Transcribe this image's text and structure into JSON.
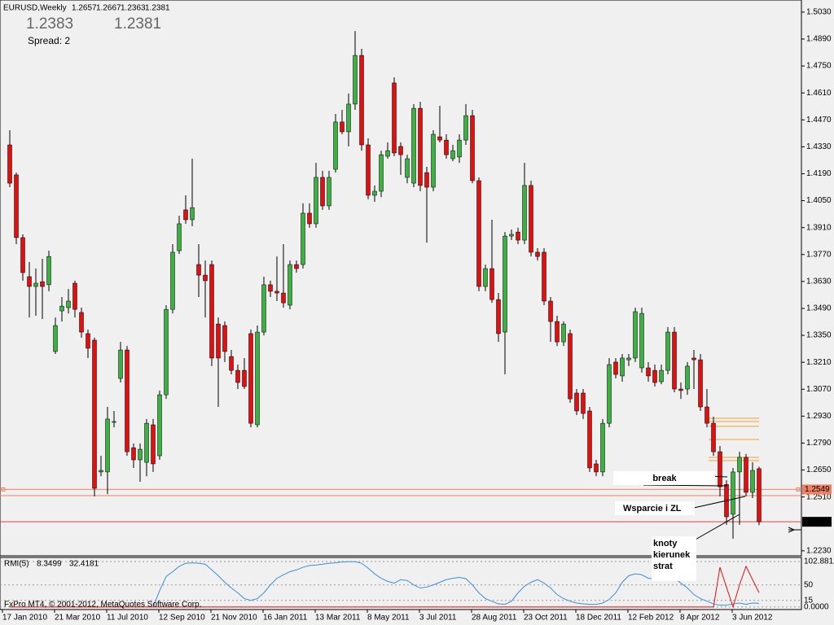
{
  "header": {
    "symbol": "EURUSD,Weekly",
    "quotes": [
      1.2383,
      1.2381
    ],
    "spread": "Spread: 2"
  },
  "footer": "FxPro MT4, © 2001-2012, MetaQuotes Software Corp.",
  "annotations": [
    "break",
    "Wsparcie i ZL",
    "knoty",
    "kierunek",
    "strat"
  ],
  "chart_data": [
    {
      "type": "candlestick",
      "categories": [
        "17 Jan 2010",
        null,
        null,
        null,
        null,
        null,
        null,
        null,
        "21 Mar 2010",
        null,
        null,
        null,
        null,
        null,
        null,
        null,
        "11 Jul 2010",
        null,
        null,
        null,
        null,
        null,
        null,
        null,
        "12 Sep 2010",
        null,
        null,
        null,
        null,
        null,
        null,
        null,
        "21 Nov 2010",
        null,
        null,
        null,
        null,
        null,
        null,
        null,
        "16 Jan 2011",
        null,
        null,
        null,
        null,
        null,
        null,
        null,
        "13 Mar 2011",
        null,
        null,
        null,
        null,
        null,
        null,
        null,
        "8 May 2011",
        null,
        null,
        null,
        null,
        null,
        null,
        null,
        "3 Jul 2011",
        null,
        null,
        null,
        null,
        null,
        null,
        null,
        "28 Aug 2011",
        null,
        null,
        null,
        null,
        null,
        null,
        null,
        "23 Oct 2011",
        null,
        null,
        null,
        null,
        null,
        null,
        null,
        "18 Dec 2011",
        null,
        null,
        null,
        null,
        null,
        null,
        null,
        "12 Feb 2012",
        null,
        null,
        null,
        null,
        null,
        null,
        null,
        "8 Apr 2012",
        null,
        null,
        null,
        null,
        null,
        null,
        null,
        "3 Jun 2012",
        null,
        null,
        null
      ],
      "open": [
        1.434,
        1.4184,
        1.3858,
        1.3655,
        1.3604,
        1.3629,
        1.3613,
        1.3266,
        1.3477,
        1.3494,
        1.3621,
        1.3469,
        1.3359,
        1.3325,
        1.264,
        1.264,
        1.2902,
        1.3126,
        1.3274,
        1.2766,
        1.2703,
        1.269,
        1.2885,
        1.2724,
        1.3041,
        1.3485,
        1.379,
        1.4002,
        1.3951,
        1.3718,
        1.3663,
        1.3718,
        1.3409,
        1.3401,
        1.324,
        1.3168,
        1.3168,
        1.3359,
        1.2885,
        1.3367,
        1.3613,
        1.3579,
        1.357,
        1.3507,
        1.3718,
        1.3718,
        1.3985,
        1.393,
        1.4171,
        1.4023,
        1.4213,
        1.4459,
        1.4408,
        1.4552,
        1.4805,
        1.434,
        1.4078,
        1.4099,
        1.4281,
        1.4662,
        1.4332,
        1.4171,
        1.4141,
        1.453,
        1.4196,
        1.412,
        1.4382,
        1.4365,
        1.4268,
        1.4277,
        1.4365,
        1.4492,
        1.4154,
        1.3604,
        1.3697,
        1.3536,
        1.3367,
        1.3866,
        1.3887,
        1.3845,
        1.4129,
        1.3782,
        1.3782,
        1.3528,
        1.3422,
        1.3316,
        1.3359,
        1.305,
        1.305,
        1.2957,
        1.2682,
        1.264,
        1.2893,
        1.3211,
        1.3139,
        1.3223,
        1.3232,
        1.3181,
        1.3181,
        1.3168,
        1.3109,
        1.3168,
        1.3367,
        1.3071,
        1.3071,
        1.3232,
        1.3223,
        1.2978,
        1.2893,
        1.2745,
        1.2575,
        1.242,
        1.264,
        1.2716,
        1.2534,
        1.2657
      ],
      "high": [
        1.4416,
        1.4196,
        1.3875,
        1.3731,
        1.3697,
        1.3748,
        1.379,
        1.3443,
        1.3549,
        1.3591,
        1.3634,
        1.3494,
        1.338,
        1.3338,
        1.2724,
        1.2978,
        1.2957,
        1.3316,
        1.3295,
        1.2788,
        1.2788,
        1.2915,
        1.2915,
        1.3063,
        1.3507,
        1.3824,
        1.3972,
        1.4078,
        1.4268,
        1.3824,
        1.3739,
        1.3739,
        1.3443,
        1.3422,
        1.3274,
        1.3198,
        1.3232,
        1.338,
        1.3401,
        1.3655,
        1.3634,
        1.376,
        1.3824,
        1.3739,
        1.3739,
        1.4036,
        1.4036,
        1.4247,
        1.4205,
        1.4205,
        1.4501,
        1.4522,
        1.4607,
        1.4932,
        1.4839,
        1.4374,
        1.4129,
        1.431,
        1.4353,
        1.4691,
        1.4353,
        1.4289,
        1.4552,
        1.4564,
        1.4226,
        1.4416,
        1.4543,
        1.4395,
        1.434,
        1.4395,
        1.4552,
        1.4522,
        1.4171,
        1.3718,
        1.3951,
        1.357,
        1.3887,
        1.39,
        1.3909,
        1.4247,
        1.4154,
        1.3803,
        1.3803,
        1.3549,
        1.3452,
        1.3422,
        1.338,
        1.3071,
        1.3071,
        1.2978,
        1.2703,
        1.2915,
        1.3232,
        1.3232,
        1.3253,
        1.3253,
        1.3494,
        1.3494,
        1.3211,
        1.3198,
        1.3198,
        1.3393,
        1.3393,
        1.3105,
        1.3211,
        1.3274,
        1.3253,
        1.3071,
        1.2927,
        1.2775,
        1.2597,
        1.2661,
        1.2745,
        1.2733,
        1.269,
        1.2667
      ],
      "low": [
        1.412,
        1.3824,
        1.3634,
        1.3443,
        1.3452,
        1.3435,
        1.3579,
        1.3253,
        1.3422,
        1.3464,
        1.3443,
        1.3338,
        1.3232,
        1.2513,
        1.2618,
        1.2525,
        1.2872,
        1.3105,
        1.2724,
        1.2661,
        1.2589,
        1.2618,
        1.264,
        1.2703,
        1.302,
        1.3464,
        1.3773,
        1.393,
        1.3917,
        1.3549,
        1.3443,
        1.319,
        1.2978,
        1.3211,
        1.3147,
        1.3071,
        1.3071,
        1.2872,
        1.2872,
        1.335,
        1.3549,
        1.3528,
        1.3494,
        1.3485,
        1.3676,
        1.3697,
        1.3909,
        1.3909,
        1.4002,
        1.4002,
        1.4196,
        1.4395,
        1.4332,
        1.4522,
        1.431,
        1.4057,
        1.4044,
        1.4069,
        1.4268,
        1.4281,
        1.4184,
        1.4141,
        1.412,
        1.4099,
        1.3832,
        1.4099,
        1.4353,
        1.4268,
        1.4255,
        1.4247,
        1.434,
        1.4141,
        1.3579,
        1.3579,
        1.3519,
        1.3316,
        1.3147,
        1.3845,
        1.3824,
        1.3824,
        1.376,
        1.3739,
        1.3507,
        1.3316,
        1.3295,
        1.3295,
        1.3,
        1.2936,
        1.2915,
        1.264,
        1.2618,
        1.2618,
        1.2872,
        1.3126,
        1.3109,
        1.319,
        1.3211,
        1.3156,
        1.3109,
        1.3084,
        1.3096,
        1.3147,
        1.3054,
        1.302,
        1.3041,
        1.3071,
        1.2957,
        1.2872,
        1.2724,
        1.2513,
        1.2365,
        1.2293,
        1.2365,
        1.2513,
        1.2504,
        1.2363
      ],
      "close": [
        1.4141,
        1.3858,
        1.3676,
        1.3604,
        1.3621,
        1.3604,
        1.376,
        1.3401,
        1.3502,
        1.3528,
        1.3485,
        1.3367,
        1.3283,
        1.2555,
        1.2648,
        1.2915,
        1.2902,
        1.3274,
        1.2745,
        1.2703,
        1.2758,
        1.2893,
        1.2682,
        1.3041,
        1.3485,
        1.3782,
        1.393,
        1.3951,
        1.4014,
        1.3663,
        1.3634,
        1.3232,
        1.3232,
        1.3266,
        1.3168,
        1.3105,
        1.3084,
        1.2893,
        1.3367,
        1.3613,
        1.3579,
        1.357,
        1.3519,
        1.3718,
        1.3697,
        1.3985,
        1.393,
        1.4171,
        1.4023,
        1.4171,
        1.4459,
        1.4408,
        1.4552,
        1.4805,
        1.434,
        1.4078,
        1.4099,
        1.4289,
        1.431,
        1.4298,
        1.4289,
        1.4268,
        1.453,
        1.4129,
        1.412,
        1.4395,
        1.4365,
        1.4289,
        1.431,
        1.4365,
        1.4492,
        1.4154,
        1.3604,
        1.3697,
        1.3536,
        1.3359,
        1.3866,
        1.3875,
        1.3845,
        1.4129,
        1.3782,
        1.376,
        1.3528,
        1.3422,
        1.3316,
        1.3409,
        1.302,
        1.2957,
        1.2944,
        1.2661,
        1.264,
        1.2893,
        1.3198,
        1.3147,
        1.3232,
        1.3232,
        1.3473,
        1.3464,
        1.3139,
        1.3105,
        1.3168,
        1.3367,
        1.3071,
        1.3063,
        1.319,
        1.3223,
        1.2978,
        1.2893,
        1.2745,
        1.2563,
        1.2407,
        1.264,
        1.2716,
        1.2534,
        1.2648,
        1.2381
      ],
      "up_color": "#3cb043",
      "down_color": "#e01010",
      "ylim": [
        1.2204,
        1.5093
      ],
      "yticks": [
        {
          "value": 1.503,
          "label": "1.5030"
        },
        {
          "value": 1.489,
          "label": "1.4890"
        },
        {
          "value": 1.475,
          "label": "1.4750"
        },
        {
          "value": 1.461,
          "label": "1.4610"
        },
        {
          "value": 1.447,
          "label": "1.4470"
        },
        {
          "value": 1.433,
          "label": "1.4330"
        },
        {
          "value": 1.419,
          "label": "1.4190"
        },
        {
          "value": 1.405,
          "label": "1.4050"
        },
        {
          "value": 1.391,
          "label": "1.3910"
        },
        {
          "value": 1.377,
          "label": "1.3770"
        },
        {
          "value": 1.363,
          "label": "1.3630"
        },
        {
          "value": 1.349,
          "label": "1.3490"
        },
        {
          "value": 1.335,
          "label": "1.3350"
        },
        {
          "value": 1.321,
          "label": "1.3210"
        },
        {
          "value": 1.307,
          "label": "1.3070"
        },
        {
          "value": 1.293,
          "label": "1.2930"
        },
        {
          "value": 1.279,
          "label": "1.2790"
        },
        {
          "value": 1.265,
          "label": "1.2650"
        },
        {
          "value": 1.251,
          "label": "1.2510"
        },
        {
          "value": 1.223,
          "label": "1.2230"
        }
      ],
      "price_line": 1.2549,
      "support_line": 1.2517,
      "line_color": "#f08060",
      "last_color": "#e04040",
      "levels": [
        1.2919,
        1.2902,
        1.2877,
        1.2809,
        1.2716,
        1.2699
      ],
      "level_color": "#f0a030"
    },
    {
      "type": "line",
      "title": "RMI(5)",
      "series": [
        {
          "color": "#3a8fd8",
          "values": [
            null,
            null,
            null,
            null,
            null,
            null,
            null,
            null,
            null,
            null,
            null,
            null,
            null,
            null,
            null,
            null,
            null,
            null,
            null,
            null,
            null,
            null,
            0,
            37,
            69,
            80,
            92,
            99,
            100,
            99,
            97,
            84,
            71,
            56,
            43,
            32,
            19,
            15,
            19,
            32,
            50,
            65,
            73,
            80,
            84,
            90,
            94,
            95,
            97,
            99,
            100,
            102,
            102.5,
            102.5,
            99,
            88,
            75,
            65,
            58,
            54,
            62,
            60,
            50,
            43,
            45,
            50,
            56,
            62,
            65,
            67,
            64,
            50,
            32,
            19,
            13,
            7,
            6,
            13,
            32,
            47,
            56,
            62,
            54,
            43,
            28,
            19,
            13,
            9,
            7,
            6,
            6,
            9,
            17,
            32,
            56,
            71,
            75,
            73,
            65,
            64,
            69,
            75,
            65,
            54,
            43,
            28,
            19,
            13,
            7,
            4,
            4,
            7,
            9,
            6,
            9,
            8.3499
          ]
        },
        {
          "color": "#e01010",
          "values": [
            0,
            0,
            0,
            0,
            0,
            0,
            0,
            0,
            0,
            0,
            0,
            0,
            0,
            0,
            0,
            0,
            0,
            0,
            0,
            0,
            0,
            0,
            0,
            0,
            0,
            0,
            0,
            0,
            0,
            0,
            0,
            0,
            0,
            0,
            0,
            0,
            0,
            0,
            0,
            0,
            0,
            0,
            0,
            0,
            0,
            0,
            0,
            0,
            0,
            0,
            0,
            0,
            0,
            0,
            0,
            0,
            0,
            0,
            0,
            0,
            0,
            0,
            0,
            0,
            0,
            0,
            0,
            0,
            0,
            0,
            0,
            0,
            0,
            0,
            0,
            0,
            0,
            0,
            0,
            0,
            0,
            0,
            0,
            0,
            0,
            0,
            0,
            0,
            0,
            0,
            0,
            0,
            0,
            0,
            0,
            0,
            0,
            0,
            0,
            0,
            0,
            0,
            0,
            0,
            0,
            0,
            0,
            0,
            0,
            90,
            45,
            0,
            50,
            92,
            62,
            32.4181
          ]
        }
      ],
      "ylim": [
        -5.8,
        112.2
      ],
      "yticks": [
        102.8812,
        50,
        15,
        {
          "value": 0,
          "label": "0.0000"
        }
      ],
      "grid": true
    }
  ]
}
